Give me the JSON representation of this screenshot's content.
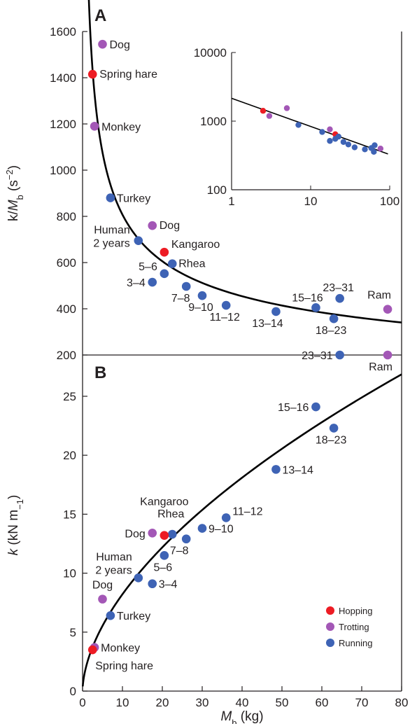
{
  "colors": {
    "hopping": "#ed1c24",
    "trotting": "#a357b6",
    "running": "#3e63b5",
    "curve": "#000000",
    "axis": "#231f20"
  },
  "chart_data": [
    {
      "id": "A",
      "type": "scatter",
      "panel_label": "A",
      "ylabel_parts": [
        "k/M",
        "b",
        " (s",
        "−2",
        ")"
      ],
      "xlim": [
        0,
        80
      ],
      "ylim": [
        200,
        1600
      ],
      "yticks": [
        200,
        400,
        600,
        800,
        1000,
        1200,
        1400,
        1600
      ],
      "grid": false,
      "curve": {
        "type": "power",
        "coef": 2100,
        "exponent": -0.415
      },
      "points": [
        {
          "x": 5,
          "y": 1545,
          "group": "trotting",
          "label": "Dog"
        },
        {
          "x": 2.5,
          "y": 1415,
          "group": "hopping",
          "label": "Spring hare"
        },
        {
          "x": 3,
          "y": 1190,
          "group": "trotting",
          "label": "Monkey"
        },
        {
          "x": 7,
          "y": 880,
          "group": "running",
          "label": "Turkey"
        },
        {
          "x": 17.5,
          "y": 760,
          "group": "trotting",
          "label": "Dog"
        },
        {
          "x": 14,
          "y": 695,
          "group": "running",
          "label": "Human\n2 years"
        },
        {
          "x": 20.5,
          "y": 645,
          "group": "hopping",
          "label": "Kangaroo"
        },
        {
          "x": 22.5,
          "y": 595,
          "group": "running",
          "label": "Rhea"
        },
        {
          "x": 20.5,
          "y": 552,
          "group": "running",
          "label": "5–6"
        },
        {
          "x": 17.5,
          "y": 515,
          "group": "running",
          "label": "3–4"
        },
        {
          "x": 26,
          "y": 497,
          "group": "running",
          "label": "7–8"
        },
        {
          "x": 30,
          "y": 457,
          "group": "running",
          "label": "9–10"
        },
        {
          "x": 36,
          "y": 415,
          "group": "running",
          "label": "11–12"
        },
        {
          "x": 48.5,
          "y": 388,
          "group": "running",
          "label": "13–14"
        },
        {
          "x": 58.5,
          "y": 405,
          "group": "running",
          "label": "15–16"
        },
        {
          "x": 63,
          "y": 357,
          "group": "running",
          "label": "18–23"
        },
        {
          "x": 64.5,
          "y": 445,
          "group": "running",
          "label": "23–31"
        },
        {
          "x": 76.5,
          "y": 398,
          "group": "trotting",
          "label": "Ram"
        }
      ],
      "inset": {
        "type": "scatter",
        "xscale": "log",
        "yscale": "log",
        "xlim": [
          1,
          100
        ],
        "ylim": [
          100,
          10000
        ],
        "xticks": [
          1,
          10,
          100
        ],
        "yticks": [
          100,
          1000,
          10000
        ],
        "curve": {
          "type": "power",
          "coef": 2150,
          "exponent": -0.41
        }
      }
    },
    {
      "id": "B",
      "type": "scatter",
      "panel_label": "B",
      "xlabel_parts": [
        "M",
        "b",
        " (kg)"
      ],
      "ylabel_parts": [
        "k (kN m",
        "−1",
        ")"
      ],
      "xlim": [
        0,
        80
      ],
      "ylim": [
        0,
        28.5
      ],
      "xticks": [
        0,
        10,
        20,
        30,
        40,
        50,
        60,
        70,
        80
      ],
      "yticks": [
        0,
        5,
        10,
        15,
        20,
        25
      ],
      "grid": false,
      "curve": {
        "type": "power",
        "coef": 2.21,
        "exponent": 0.57
      },
      "points": [
        {
          "x": 76.5,
          "y": 28.5,
          "group": "trotting",
          "label": "Ram"
        },
        {
          "x": 64.5,
          "y": 28.5,
          "group": "running",
          "label": "23–31"
        },
        {
          "x": 58.5,
          "y": 24.1,
          "group": "running",
          "label": "15–16"
        },
        {
          "x": 63,
          "y": 22.3,
          "group": "running",
          "label": "18–23"
        },
        {
          "x": 48.5,
          "y": 18.8,
          "group": "running",
          "label": "13–14"
        },
        {
          "x": 36,
          "y": 14.7,
          "group": "running",
          "label": "11–12"
        },
        {
          "x": 30,
          "y": 13.8,
          "group": "running",
          "label": "9–10"
        },
        {
          "x": 26,
          "y": 12.9,
          "group": "running",
          "label": "7–8"
        },
        {
          "x": 22.5,
          "y": 13.3,
          "group": "running",
          "label": "Rhea"
        },
        {
          "x": 20.5,
          "y": 13.2,
          "group": "hopping",
          "label": "Kangaroo"
        },
        {
          "x": 17.5,
          "y": 13.4,
          "group": "trotting",
          "label": "Dog"
        },
        {
          "x": 20.5,
          "y": 11.5,
          "group": "running",
          "label": "5–6"
        },
        {
          "x": 14,
          "y": 9.6,
          "group": "running",
          "label": "Human\n2 years"
        },
        {
          "x": 17.5,
          "y": 9.1,
          "group": "running",
          "label": "3–4"
        },
        {
          "x": 5,
          "y": 7.8,
          "group": "trotting",
          "label": "Dog"
        },
        {
          "x": 7,
          "y": 6.4,
          "group": "running",
          "label": "Turkey"
        },
        {
          "x": 3,
          "y": 3.7,
          "group": "trotting",
          "label": "Monkey"
        },
        {
          "x": 2.5,
          "y": 3.5,
          "group": "hopping",
          "label": "Spring hare"
        }
      ],
      "legend": {
        "position": "bottom-right",
        "entries": [
          {
            "group": "hopping",
            "label": "Hopping"
          },
          {
            "group": "trotting",
            "label": "Trotting"
          },
          {
            "group": "running",
            "label": "Running"
          }
        ]
      }
    }
  ]
}
